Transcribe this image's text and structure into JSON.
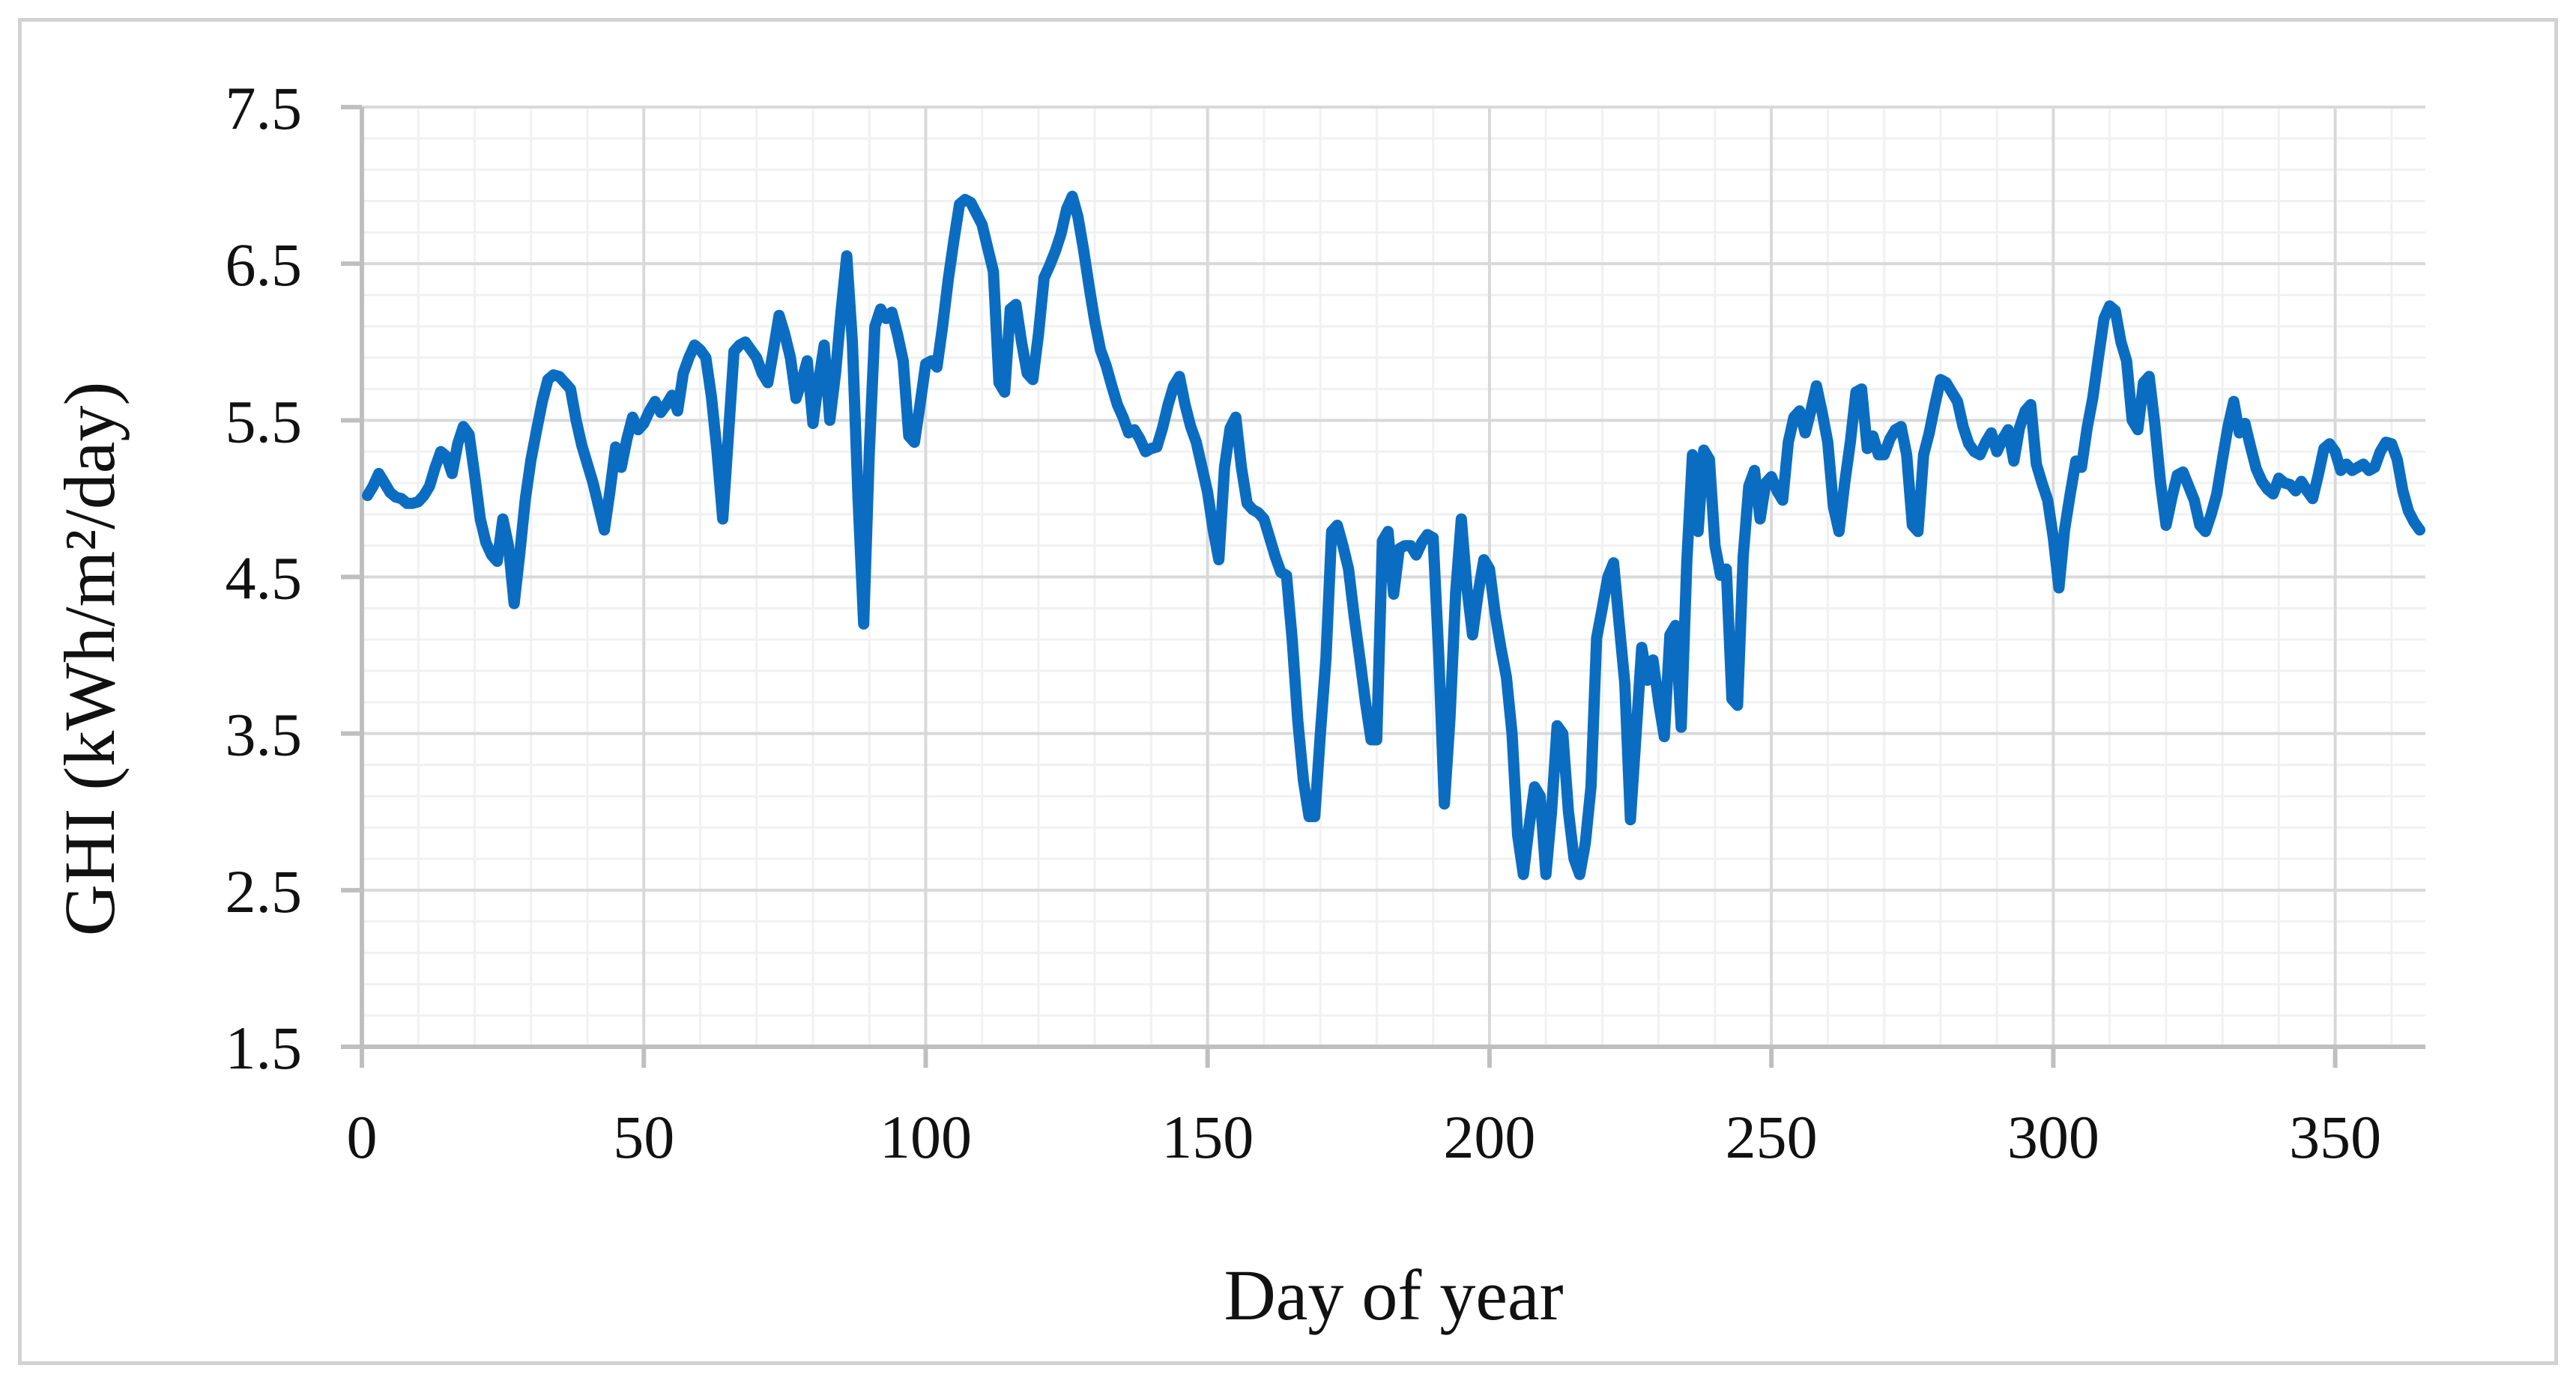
{
  "chart_data": {
    "type": "line",
    "title": "",
    "xlabel": "Day of year",
    "ylabel": "GHI (kWh/m²/day)",
    "x_ticks": [
      0,
      50,
      100,
      150,
      200,
      250,
      300,
      350
    ],
    "x_tick_labels": [
      "0",
      "50",
      "100",
      "150",
      "200",
      "250",
      "300",
      "350"
    ],
    "y_ticks": [
      1.5,
      2.5,
      3.5,
      4.5,
      5.5,
      6.5,
      7.5
    ],
    "y_tick_labels": [
      "1.5",
      "2.5",
      "3.5",
      "4.5",
      "5.5",
      "6.5",
      "7.5"
    ],
    "xlim": [
      0,
      366
    ],
    "ylim": [
      1.5,
      7.5
    ],
    "x_minor_step": 10,
    "x_minor_max": 360,
    "y_minor_step": 0.2,
    "grid": "major+minor",
    "legend_position": "none",
    "line_color": "#0B6DC1",
    "minor_grid_color": "#F1F1F1",
    "major_grid_color": "#D9D9D9",
    "axis_color": "#BFBFBF",
    "series": [
      {
        "name": "GHI",
        "start_day": 1,
        "values": [
          5.02,
          5.08,
          5.16,
          5.1,
          5.04,
          5.01,
          5.0,
          4.97,
          4.97,
          4.98,
          5.02,
          5.08,
          5.2,
          5.3,
          5.27,
          5.16,
          5.35,
          5.46,
          5.41,
          5.15,
          4.87,
          4.72,
          4.64,
          4.6,
          4.87,
          4.7,
          4.33,
          4.65,
          5.0,
          5.25,
          5.44,
          5.62,
          5.76,
          5.79,
          5.78,
          5.74,
          5.7,
          5.5,
          5.34,
          5.22,
          5.1,
          4.95,
          4.8,
          5.05,
          5.33,
          5.2,
          5.38,
          5.52,
          5.44,
          5.48,
          5.56,
          5.62,
          5.55,
          5.6,
          5.66,
          5.56,
          5.8,
          5.9,
          5.98,
          5.95,
          5.9,
          5.65,
          5.3,
          4.87,
          5.4,
          5.94,
          5.98,
          6.0,
          5.95,
          5.9,
          5.8,
          5.74,
          5.95,
          6.17,
          6.05,
          5.9,
          5.64,
          5.75,
          5.88,
          5.48,
          5.75,
          5.98,
          5.5,
          5.8,
          6.2,
          6.55,
          6.0,
          5.0,
          4.2,
          5.3,
          6.1,
          6.21,
          6.15,
          6.19,
          6.05,
          5.88,
          5.4,
          5.36,
          5.6,
          5.86,
          5.88,
          5.84,
          6.1,
          6.4,
          6.65,
          6.88,
          6.91,
          6.89,
          6.82,
          6.75,
          6.6,
          6.45,
          5.74,
          5.68,
          6.21,
          6.24,
          6.0,
          5.8,
          5.76,
          6.05,
          6.41,
          6.49,
          6.58,
          6.69,
          6.85,
          6.93,
          6.8,
          6.59,
          6.35,
          6.13,
          5.95,
          5.85,
          5.72,
          5.6,
          5.52,
          5.42,
          5.44,
          5.38,
          5.3,
          5.32,
          5.33,
          5.45,
          5.6,
          5.72,
          5.78,
          5.6,
          5.46,
          5.36,
          5.2,
          5.04,
          4.8,
          4.61,
          5.2,
          5.45,
          5.52,
          5.2,
          4.97,
          4.93,
          4.91,
          4.87,
          4.75,
          4.63,
          4.53,
          4.51,
          4.1,
          3.58,
          3.2,
          2.97,
          2.97,
          3.5,
          3.98,
          4.79,
          4.83,
          4.7,
          4.55,
          4.25,
          3.98,
          3.7,
          3.46,
          3.46,
          4.73,
          4.79,
          4.39,
          4.68,
          4.7,
          4.7,
          4.64,
          4.72,
          4.77,
          4.75,
          4.0,
          3.05,
          3.6,
          4.4,
          4.87,
          4.43,
          4.13,
          4.4,
          4.61,
          4.55,
          4.27,
          4.05,
          3.86,
          3.5,
          2.85,
          2.6,
          2.9,
          3.16,
          3.1,
          2.6,
          3.0,
          3.55,
          3.5,
          3.0,
          2.7,
          2.6,
          2.8,
          3.16,
          4.11,
          4.3,
          4.5,
          4.59,
          4.2,
          3.82,
          2.95,
          3.5,
          4.05,
          3.84,
          3.97,
          3.7,
          3.48,
          4.13,
          4.19,
          3.54,
          4.6,
          5.28,
          4.79,
          5.31,
          5.25,
          4.7,
          4.51,
          4.55,
          3.72,
          3.68,
          4.63,
          5.08,
          5.18,
          4.87,
          5.1,
          5.14,
          5.05,
          4.99,
          5.36,
          5.52,
          5.56,
          5.42,
          5.56,
          5.72,
          5.55,
          5.36,
          4.95,
          4.79,
          5.1,
          5.36,
          5.68,
          5.7,
          5.32,
          5.4,
          5.28,
          5.28,
          5.38,
          5.44,
          5.46,
          5.28,
          4.83,
          4.79,
          5.28,
          5.42,
          5.6,
          5.76,
          5.74,
          5.68,
          5.62,
          5.46,
          5.35,
          5.3,
          5.28,
          5.36,
          5.42,
          5.3,
          5.38,
          5.44,
          5.24,
          5.45,
          5.56,
          5.6,
          5.22,
          5.1,
          4.99,
          4.75,
          4.43,
          4.8,
          5.03,
          5.24,
          5.2,
          5.45,
          5.64,
          5.9,
          6.15,
          6.23,
          6.2,
          6.0,
          5.88,
          5.5,
          5.44,
          5.74,
          5.78,
          5.48,
          5.11,
          4.83,
          5.0,
          5.15,
          5.17,
          5.08,
          4.99,
          4.83,
          4.79,
          4.9,
          5.03,
          5.25,
          5.46,
          5.62,
          5.42,
          5.48,
          5.33,
          5.19,
          5.11,
          5.06,
          5.03,
          5.13,
          5.1,
          5.09,
          5.05,
          5.11,
          5.05,
          5.0,
          5.15,
          5.32,
          5.35,
          5.3,
          5.18,
          5.22,
          5.18,
          5.2,
          5.22,
          5.18,
          5.2,
          5.3,
          5.36,
          5.35,
          5.25,
          5.05,
          4.92,
          4.85,
          4.8
        ]
      }
    ]
  },
  "frame": {
    "border_color": "#D2D2D2"
  }
}
